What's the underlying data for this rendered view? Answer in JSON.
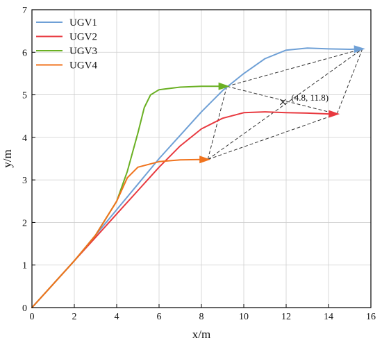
{
  "chart_data": {
    "type": "line",
    "xlabel": "x/m",
    "ylabel": "y/m",
    "xlim": [
      0,
      16
    ],
    "ylim": [
      0,
      7
    ],
    "xticks": [
      0,
      2,
      4,
      6,
      8,
      10,
      12,
      14,
      16
    ],
    "yticks": [
      0,
      1,
      2,
      3,
      4,
      5,
      6,
      7
    ],
    "grid": true,
    "legend_position": "top-left",
    "series": [
      {
        "name": "UGV1",
        "color": "#6fa0d6",
        "points": [
          [
            0,
            0
          ],
          [
            1,
            0.55
          ],
          [
            2,
            1.1
          ],
          [
            3,
            1.7
          ],
          [
            4,
            2.3
          ],
          [
            5,
            2.9
          ],
          [
            6,
            3.5
          ],
          [
            7,
            4.05
          ],
          [
            8,
            4.6
          ],
          [
            9,
            5.1
          ],
          [
            10,
            5.5
          ],
          [
            11,
            5.85
          ],
          [
            12,
            6.05
          ],
          [
            13,
            6.1
          ],
          [
            14,
            6.08
          ],
          [
            15,
            6.07
          ],
          [
            15.6,
            6.08
          ]
        ],
        "arrow_end": true
      },
      {
        "name": "UGV2",
        "color": "#e8393f",
        "points": [
          [
            0,
            0
          ],
          [
            1,
            0.55
          ],
          [
            2,
            1.1
          ],
          [
            3,
            1.65
          ],
          [
            4,
            2.2
          ],
          [
            5,
            2.75
          ],
          [
            6,
            3.3
          ],
          [
            7,
            3.8
          ],
          [
            8,
            4.2
          ],
          [
            9,
            4.45
          ],
          [
            10,
            4.58
          ],
          [
            11,
            4.6
          ],
          [
            12,
            4.58
          ],
          [
            13,
            4.57
          ],
          [
            14,
            4.55
          ],
          [
            14.4,
            4.55
          ]
        ],
        "arrow_end": true
      },
      {
        "name": "UGV3",
        "color": "#6ab023",
        "points": [
          [
            0,
            0
          ],
          [
            1,
            0.55
          ],
          [
            2,
            1.1
          ],
          [
            3,
            1.7
          ],
          [
            4,
            2.5
          ],
          [
            4.5,
            3.2
          ],
          [
            5,
            4.1
          ],
          [
            5.3,
            4.7
          ],
          [
            5.6,
            5.0
          ],
          [
            6,
            5.12
          ],
          [
            7,
            5.18
          ],
          [
            8,
            5.2
          ],
          [
            9,
            5.2
          ],
          [
            9.2,
            5.2
          ]
        ],
        "arrow_end": true
      },
      {
        "name": "UGV4",
        "color": "#f0731d",
        "points": [
          [
            0,
            0
          ],
          [
            1,
            0.55
          ],
          [
            2,
            1.1
          ],
          [
            3,
            1.7
          ],
          [
            4,
            2.5
          ],
          [
            4.5,
            3.05
          ],
          [
            5,
            3.3
          ],
          [
            6,
            3.43
          ],
          [
            7,
            3.47
          ],
          [
            8,
            3.48
          ],
          [
            8.3,
            3.48
          ]
        ],
        "arrow_end": true
      }
    ],
    "formation_lines": [
      [
        [
          9.2,
          5.2
        ],
        [
          15.6,
          6.08
        ]
      ],
      [
        [
          9.2,
          5.2
        ],
        [
          14.4,
          4.55
        ]
      ],
      [
        [
          9.2,
          5.2
        ],
        [
          8.3,
          3.48
        ]
      ],
      [
        [
          8.3,
          3.48
        ],
        [
          15.6,
          6.08
        ]
      ],
      [
        [
          8.3,
          3.48
        ],
        [
          14.4,
          4.55
        ]
      ],
      [
        [
          14.4,
          4.55
        ],
        [
          15.6,
          6.08
        ]
      ]
    ],
    "formation_line_color": "#333333",
    "annotations": [
      {
        "text": "(4.8, 11.8)",
        "x": 11.85,
        "y": 4.83,
        "marker": "x"
      }
    ]
  }
}
